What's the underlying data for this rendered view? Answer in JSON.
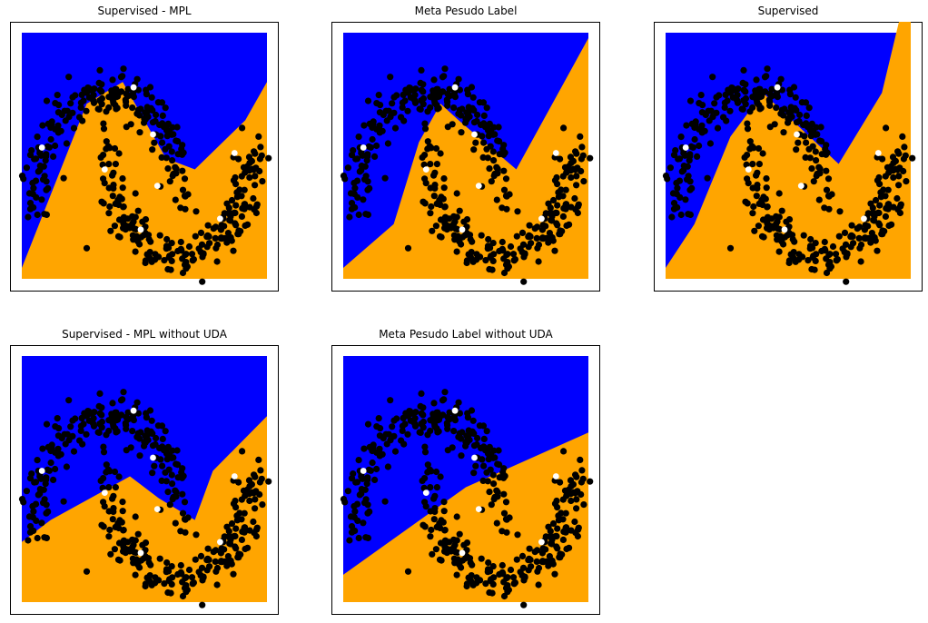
{
  "colors": {
    "region_a": "#0000ff",
    "region_b": "#ffa500",
    "points": "#000000",
    "labeled": "#ffffff",
    "frame": "#000000"
  },
  "chart_data": [
    {
      "type": "scatter",
      "title": "Supervised - MPL",
      "xlabel": "",
      "ylabel": "",
      "axes_ticks": "none",
      "boundary": [
        [
          -1.2,
          -0.6
        ],
        [
          -0.3,
          0.9
        ],
        [
          0.2,
          1.1
        ],
        [
          0.8,
          0.4
        ],
        [
          1.2,
          0.3
        ],
        [
          1.9,
          0.75
        ],
        [
          2.2,
          1.1
        ]
      ],
      "regions": {
        "above_boundary": "#0000ff",
        "below_boundary": "#ffa500"
      }
    },
    {
      "type": "scatter",
      "title": "Meta Pesudo Label",
      "xlabel": "",
      "ylabel": "",
      "axes_ticks": "none",
      "boundary": [
        [
          -1.2,
          -0.6
        ],
        [
          -0.5,
          -0.2
        ],
        [
          -0.15,
          0.55
        ],
        [
          0.15,
          0.9
        ],
        [
          0.4,
          0.75
        ],
        [
          1.2,
          0.3
        ],
        [
          2.2,
          1.5
        ]
      ],
      "regions": {
        "above_boundary": "#0000ff",
        "below_boundary": "#ffa500"
      }
    },
    {
      "type": "scatter",
      "title": "Supervised",
      "xlabel": "",
      "ylabel": "",
      "axes_ticks": "none",
      "boundary": [
        [
          -1.2,
          -0.6
        ],
        [
          -0.8,
          -0.2
        ],
        [
          -0.3,
          0.6
        ],
        [
          0.15,
          1.0
        ],
        [
          1.2,
          0.35
        ],
        [
          1.8,
          1.0
        ],
        [
          2.2,
          2.1
        ]
      ],
      "regions": {
        "above_boundary": "#0000ff",
        "below_boundary": "#ffa500"
      }
    },
    {
      "type": "scatter",
      "title": "Supervised - MPL without UDA",
      "xlabel": "",
      "ylabel": "",
      "axes_ticks": "none",
      "boundary": [
        [
          -1.2,
          -0.15
        ],
        [
          -0.8,
          0.05
        ],
        [
          0.3,
          0.45
        ],
        [
          0.7,
          0.25
        ],
        [
          1.2,
          0.05
        ],
        [
          1.45,
          0.5
        ],
        [
          2.2,
          1.0
        ]
      ],
      "regions": {
        "above_boundary": "#0000ff",
        "below_boundary": "#ffa500"
      }
    },
    {
      "type": "scatter",
      "title": "Meta Pesudo Label without UDA",
      "xlabel": "",
      "ylabel": "",
      "axes_ticks": "none",
      "boundary": [
        [
          -1.2,
          -0.45
        ],
        [
          0.5,
          0.35
        ],
        [
          2.2,
          0.85
        ]
      ],
      "regions": {
        "above_boundary": "#0000ff",
        "below_boundary": "#ffa500"
      }
    }
  ]
}
